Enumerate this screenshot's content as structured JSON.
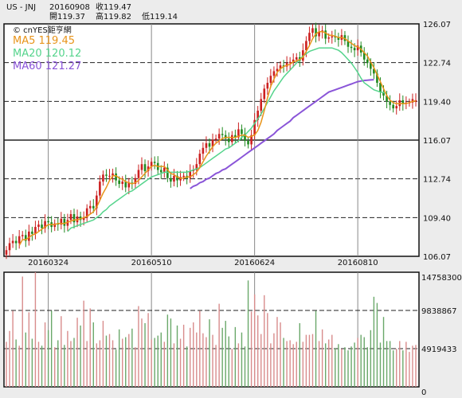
{
  "header": {
    "symbol": "US - JNJ",
    "date": "20160908",
    "close_label": "收119.47",
    "open_label": "開119.37",
    "high_label": "高119.82",
    "low_label": "低119.14"
  },
  "brand": "© cnYES鉅亨網",
  "colors": {
    "ma5": "#e8941a",
    "ma20": "#55d48c",
    "ma60": "#8a55d8",
    "up": "#cc2020",
    "down": "#208a20",
    "upVol": "#d88c8c",
    "downVol": "#6aa86a"
  },
  "chart_data": [
    {
      "type": "candlestick",
      "legend": [
        {
          "name": "MA5",
          "value": "119.45"
        },
        {
          "name": "MA20",
          "value": "120.12"
        },
        {
          "name": "MA60",
          "value": "121.27"
        }
      ],
      "y_ticks": [
        "126.07",
        "122.74",
        "119.40",
        "116.07",
        "112.74",
        "109.40",
        "106.07"
      ],
      "ylim": [
        106.07,
        126.07
      ],
      "x_labels": [
        {
          "label": "20160324",
          "index": 13
        },
        {
          "label": "20160510",
          "index": 45
        },
        {
          "label": "20160624",
          "index": 77
        },
        {
          "label": "20160810",
          "index": 109
        }
      ],
      "closes": [
        106.6,
        107.2,
        107.4,
        107.2,
        107.8,
        107.9,
        107.4,
        108.2,
        108.0,
        108.6,
        108.8,
        108.5,
        109.1,
        109.0,
        108.6,
        108.9,
        108.8,
        109.3,
        108.7,
        109.2,
        109.7,
        109.0,
        109.5,
        109.2,
        109.4,
        110.2,
        110.4,
        110.2,
        111.3,
        112.5,
        113.1,
        113.0,
        113.0,
        113.2,
        112.6,
        112.3,
        112.5,
        112.0,
        112.4,
        112.3,
        112.8,
        113.5,
        114.0,
        113.4,
        113.8,
        114.2,
        114.1,
        113.5,
        113.3,
        113.7,
        112.8,
        112.5,
        113.0,
        112.6,
        112.9,
        113.0,
        112.8,
        113.4,
        113.5,
        114.0,
        114.9,
        115.4,
        115.8,
        115.5,
        116.1,
        116.2,
        116.6,
        116.5,
        116.2,
        115.9,
        116.5,
        116.3,
        117.0,
        116.6,
        116.0,
        115.7,
        116.5,
        117.8,
        118.6,
        119.6,
        120.5,
        121.0,
        121.6,
        122.0,
        122.2,
        122.5,
        122.4,
        122.7,
        122.8,
        123.0,
        123.2,
        122.9,
        123.8,
        124.6,
        125.3,
        125.7,
        125.0,
        125.4,
        125.5,
        124.8,
        124.9,
        125.0,
        124.9,
        124.7,
        125.1,
        124.6,
        124.1,
        124.0,
        123.8,
        124.2,
        123.6,
        123.0,
        122.7,
        122.2,
        121.8,
        121.0,
        120.2,
        119.9,
        119.4,
        119.1,
        118.8,
        119.0,
        119.5,
        119.2,
        119.3,
        119.3,
        119.6,
        119.5
      ],
      "opens": [
        106.2,
        106.6,
        107.2,
        107.4,
        107.2,
        107.8,
        107.9,
        107.4,
        108.2,
        108.0,
        108.6,
        108.8,
        108.5,
        109.1,
        109.0,
        108.6,
        108.9,
        108.8,
        109.3,
        108.7,
        109.2,
        109.7,
        109.0,
        109.5,
        109.2,
        109.4,
        110.2,
        110.4,
        110.2,
        111.3,
        112.5,
        113.1,
        113.0,
        113.0,
        113.2,
        112.6,
        112.3,
        112.5,
        112.0,
        112.4,
        112.3,
        112.8,
        113.5,
        114.0,
        113.4,
        113.8,
        114.2,
        114.1,
        113.5,
        113.3,
        113.7,
        112.8,
        112.5,
        113.0,
        112.6,
        112.9,
        113.0,
        112.8,
        113.4,
        113.5,
        114.0,
        114.9,
        115.4,
        115.8,
        115.5,
        116.1,
        116.2,
        116.6,
        116.5,
        116.2,
        115.9,
        116.5,
        116.3,
        117.0,
        116.6,
        116.0,
        115.7,
        116.5,
        117.8,
        118.6,
        119.6,
        120.5,
        121.0,
        121.6,
        122.0,
        122.2,
        122.5,
        122.4,
        122.7,
        122.8,
        123.0,
        123.2,
        122.9,
        123.8,
        124.6,
        125.3,
        125.7,
        125.0,
        125.4,
        125.5,
        124.8,
        124.9,
        125.0,
        124.9,
        124.7,
        125.1,
        124.6,
        124.1,
        124.0,
        123.8,
        124.2,
        123.6,
        123.0,
        122.7,
        122.2,
        121.8,
        121.0,
        120.2,
        119.9,
        119.4,
        119.1,
        118.8,
        119.0,
        119.5,
        119.2,
        119.3,
        119.3,
        119.37
      ],
      "ma5": [
        null,
        null,
        null,
        null,
        107.0,
        107.5,
        107.5,
        107.7,
        107.9,
        108.0,
        108.2,
        108.4,
        108.6,
        108.8,
        108.8,
        108.8,
        108.9,
        108.9,
        108.9,
        109.0,
        109.1,
        109.2,
        109.2,
        109.3,
        109.4,
        109.5,
        109.7,
        109.9,
        110.3,
        110.9,
        111.5,
        112.0,
        112.6,
        113.0,
        113.0,
        112.8,
        112.7,
        112.5,
        112.4,
        112.3,
        112.4,
        112.6,
        112.9,
        113.2,
        113.5,
        113.8,
        113.9,
        113.8,
        113.8,
        113.8,
        113.5,
        113.2,
        113.1,
        112.9,
        112.8,
        112.8,
        112.9,
        112.9,
        113.1,
        113.3,
        113.7,
        114.2,
        114.7,
        115.1,
        115.5,
        115.8,
        116.0,
        116.2,
        116.3,
        116.3,
        116.3,
        116.3,
        116.4,
        116.5,
        116.5,
        116.3,
        116.4,
        116.5,
        116.9,
        117.6,
        118.6,
        119.7,
        120.7,
        121.3,
        121.9,
        122.2,
        122.4,
        122.5,
        122.6,
        122.8,
        122.9,
        123.0,
        123.2,
        123.7,
        124.2,
        124.8,
        125.2,
        125.4,
        125.4,
        125.3,
        125.1,
        125.1,
        125.0,
        124.9,
        124.9,
        124.8,
        124.6,
        124.4,
        124.2,
        124.1,
        123.9,
        123.6,
        123.3,
        122.8,
        122.3,
        121.7,
        121.1,
        120.5,
        119.9,
        119.5,
        119.3,
        119.2,
        119.2,
        119.2,
        119.2,
        119.3,
        119.4,
        119.45
      ],
      "ma20": [
        null,
        null,
        null,
        null,
        null,
        null,
        null,
        null,
        null,
        null,
        null,
        null,
        null,
        null,
        null,
        null,
        null,
        null,
        null,
        108.2,
        108.5,
        108.6,
        108.7,
        108.8,
        108.9,
        109.0,
        109.1,
        109.2,
        109.4,
        109.6,
        109.9,
        110.1,
        110.4,
        110.6,
        110.8,
        111.0,
        111.2,
        111.4,
        111.6,
        111.7,
        111.9,
        112.1,
        112.3,
        112.5,
        112.7,
        112.9,
        113.0,
        113.1,
        113.2,
        113.3,
        113.3,
        113.3,
        113.3,
        113.3,
        113.3,
        113.3,
        113.3,
        113.4,
        113.5,
        113.6,
        113.7,
        113.9,
        114.1,
        114.3,
        114.5,
        114.7,
        114.9,
        115.1,
        115.3,
        115.4,
        115.6,
        115.8,
        116.0,
        116.3,
        116.5,
        116.8,
        117.1,
        117.5,
        117.9,
        118.3,
        118.8,
        119.3,
        119.8,
        120.3,
        120.7,
        121.1,
        121.5,
        121.8,
        122.1,
        122.4,
        122.7,
        123.0,
        123.3,
        123.5,
        123.7,
        123.8,
        123.9,
        124.0,
        124.0,
        124.0,
        124.0,
        124.0,
        123.9,
        123.8,
        123.6,
        123.3,
        123.0,
        122.7,
        122.3,
        121.9,
        121.4,
        121.0,
        120.8,
        120.6,
        120.4,
        120.3,
        120.2,
        120.15,
        120.12
      ],
      "ma60": [
        null,
        null,
        null,
        null,
        null,
        null,
        null,
        null,
        null,
        null,
        null,
        null,
        null,
        null,
        null,
        null,
        null,
        null,
        null,
        null,
        null,
        null,
        null,
        null,
        null,
        null,
        null,
        null,
        null,
        null,
        null,
        null,
        null,
        null,
        null,
        null,
        null,
        null,
        null,
        null,
        null,
        null,
        null,
        null,
        null,
        null,
        null,
        null,
        null,
        null,
        null,
        null,
        null,
        null,
        null,
        null,
        null,
        111.9,
        112.1,
        112.2,
        112.4,
        112.5,
        112.7,
        112.8,
        113.0,
        113.2,
        113.3,
        113.5,
        113.6,
        113.8,
        114.0,
        114.2,
        114.4,
        114.6,
        114.8,
        115.0,
        115.2,
        115.4,
        115.6,
        115.8,
        116.0,
        116.2,
        116.4,
        116.6,
        116.9,
        117.1,
        117.3,
        117.5,
        117.7,
        118.0,
        118.2,
        118.4,
        118.6,
        118.8,
        119.0,
        119.2,
        119.4,
        119.6,
        119.8,
        120.0,
        120.2,
        120.3,
        120.4,
        120.5,
        120.6,
        120.7,
        120.8,
        120.9,
        121.0,
        121.1,
        121.15,
        121.2,
        121.22,
        121.25,
        121.27
      ]
    },
    {
      "type": "bar",
      "name": "volume",
      "y_ticks": [
        "14758300",
        "9838867",
        "4919433",
        "0"
      ],
      "ylim": [
        0,
        14758300
      ],
      "values": [
        5800000,
        7200000,
        9800000,
        6100000,
        5300000,
        14200000,
        7000000,
        9600000,
        6200000,
        14758300,
        5800000,
        5300000,
        8300000,
        7300000,
        9800000,
        5100000,
        6000000,
        9100000,
        5400000,
        7200000,
        5900000,
        6300000,
        8900000,
        7900000,
        11100000,
        5900000,
        10100000,
        8300000,
        5600000,
        6000000,
        8500000,
        6600000,
        6800000,
        6000000,
        4800000,
        7400000,
        6200000,
        6400000,
        6800000,
        7500000,
        5100000,
        10400000,
        8800000,
        8200000,
        9500000,
        6100000,
        6300000,
        6600000,
        7000000,
        5800000,
        9300000,
        8800000,
        5600000,
        7900000,
        6200000,
        8000000,
        5200000,
        7600000,
        8300000,
        7000000,
        9800000,
        6900000,
        6400000,
        8700000,
        6700000,
        5400000,
        10700000,
        7600000,
        8500000,
        6500000,
        4900000,
        7700000,
        5600000,
        7000000,
        5200000,
        13700000,
        9700000,
        11900000,
        9200000,
        6800000,
        11800000,
        9500000,
        5600000,
        6900000,
        9000000,
        8300000,
        6300000,
        5900000,
        6000000,
        5500000,
        5800000,
        8200000,
        5800000,
        6700000,
        6700000,
        6800000,
        9800000,
        5900000,
        7400000,
        5600000,
        6100000,
        6700000,
        5000000,
        5500000,
        4900000,
        5100000,
        4700000,
        5200000,
        5700000,
        6300000,
        6700000,
        6400000,
        5100000,
        7300000,
        11600000,
        10800000,
        5700000,
        9000000,
        5900000,
        5900000,
        4700000,
        4900000,
        5900000,
        4700000,
        5800000,
        4500000,
        5300000,
        5400000
      ]
    }
  ]
}
